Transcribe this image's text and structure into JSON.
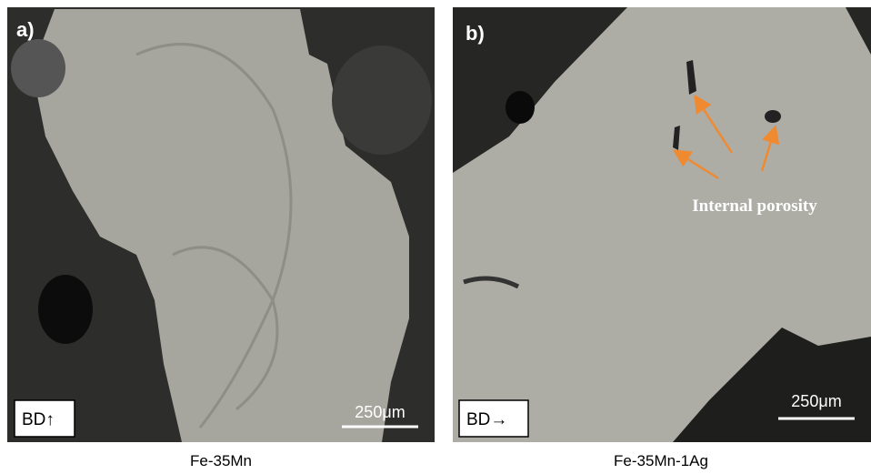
{
  "panels": [
    {
      "label": "a)",
      "build_direction": "BD↑",
      "scale_bar": "250μm",
      "caption": "Fe-35Mn"
    },
    {
      "label": "b)",
      "build_direction": "BD→",
      "scale_bar": "250μm",
      "caption": "Fe-35Mn-1Ag",
      "annotation": "Internal porosity"
    }
  ]
}
